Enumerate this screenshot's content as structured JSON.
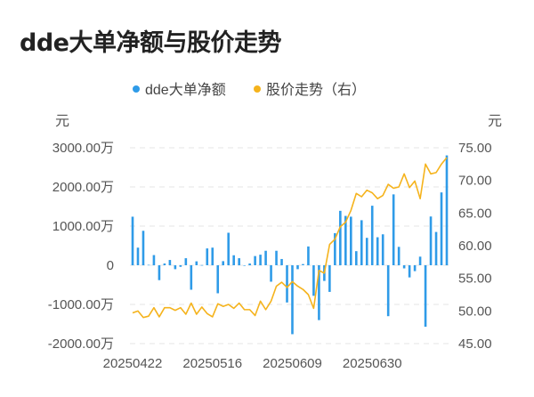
{
  "title": "dde大单净额与股价走势",
  "chart_data": {
    "type": "bar+line",
    "title": "dde大单净额与股价走势",
    "legend": [
      "dde大单净额",
      "股价走势（右）"
    ],
    "legend_position": "top",
    "left_unit": "元",
    "right_unit": "元",
    "left_axis": {
      "ylim": [
        -2000,
        3000
      ],
      "ticks": [
        "3000.00万",
        "2000.00万",
        "1000.00万",
        "0",
        "-1000.00万",
        "-2000.00万"
      ],
      "tick_values": [
        3000,
        2000,
        1000,
        0,
        -1000,
        -2000
      ]
    },
    "right_axis": {
      "ylim": [
        45,
        75
      ],
      "ticks": [
        "75.00",
        "70.00",
        "65.00",
        "60.00",
        "55.00",
        "50.00",
        "45.00"
      ],
      "tick_values": [
        75,
        70,
        65,
        60,
        55,
        50,
        45
      ]
    },
    "grid": true,
    "x_tick_labels": [
      {
        "index": 0,
        "label": "20250422"
      },
      {
        "index": 15,
        "label": "20250516"
      },
      {
        "index": 30,
        "label": "20250609"
      },
      {
        "index": 45,
        "label": "20250630"
      }
    ],
    "colors": {
      "bar": "#2f9be8",
      "line": "#f5b31c"
    },
    "series": [
      {
        "name": "dde大单净额",
        "type": "bar",
        "unit": "万",
        "values": [
          1240,
          450,
          880,
          10,
          260,
          -380,
          45,
          135,
          -100,
          -40,
          180,
          -625,
          100,
          5,
          430,
          450,
          -715,
          105,
          830,
          255,
          180,
          -10,
          45,
          235,
          270,
          370,
          -420,
          370,
          160,
          -950,
          -1760,
          -100,
          30,
          480,
          -780,
          -1400,
          -400,
          -680,
          820,
          1390,
          1260,
          1240,
          360,
          1150,
          700,
          1520,
          715,
          790,
          -1300,
          1810,
          470,
          -80,
          -310,
          -150,
          220,
          -1570,
          1245,
          850,
          1860,
          2805
        ]
      },
      {
        "name": "股价走势（右）",
        "type": "line",
        "values": [
          49.7,
          50.0,
          49.0,
          49.2,
          50.5,
          49.1,
          50.5,
          50.5,
          50.1,
          50.5,
          49.5,
          51.2,
          49.5,
          50.6,
          49.6,
          49.1,
          51.1,
          50.7,
          51.0,
          50.4,
          51.2,
          50.2,
          50.2,
          49.3,
          51.5,
          50.2,
          51.5,
          53.8,
          54.4,
          53.6,
          54.5,
          53.8,
          53.3,
          52.5,
          50.4,
          56.2,
          55.8,
          60.2,
          61.0,
          62.9,
          63.6,
          65.4,
          68.0,
          67.5,
          68.5,
          68.1,
          67.2,
          67.7,
          69.4,
          68.8,
          69.0,
          71.0,
          68.9,
          69.9,
          67.2,
          72.5,
          71.0,
          71.2,
          72.5,
          73.5
        ]
      }
    ]
  }
}
